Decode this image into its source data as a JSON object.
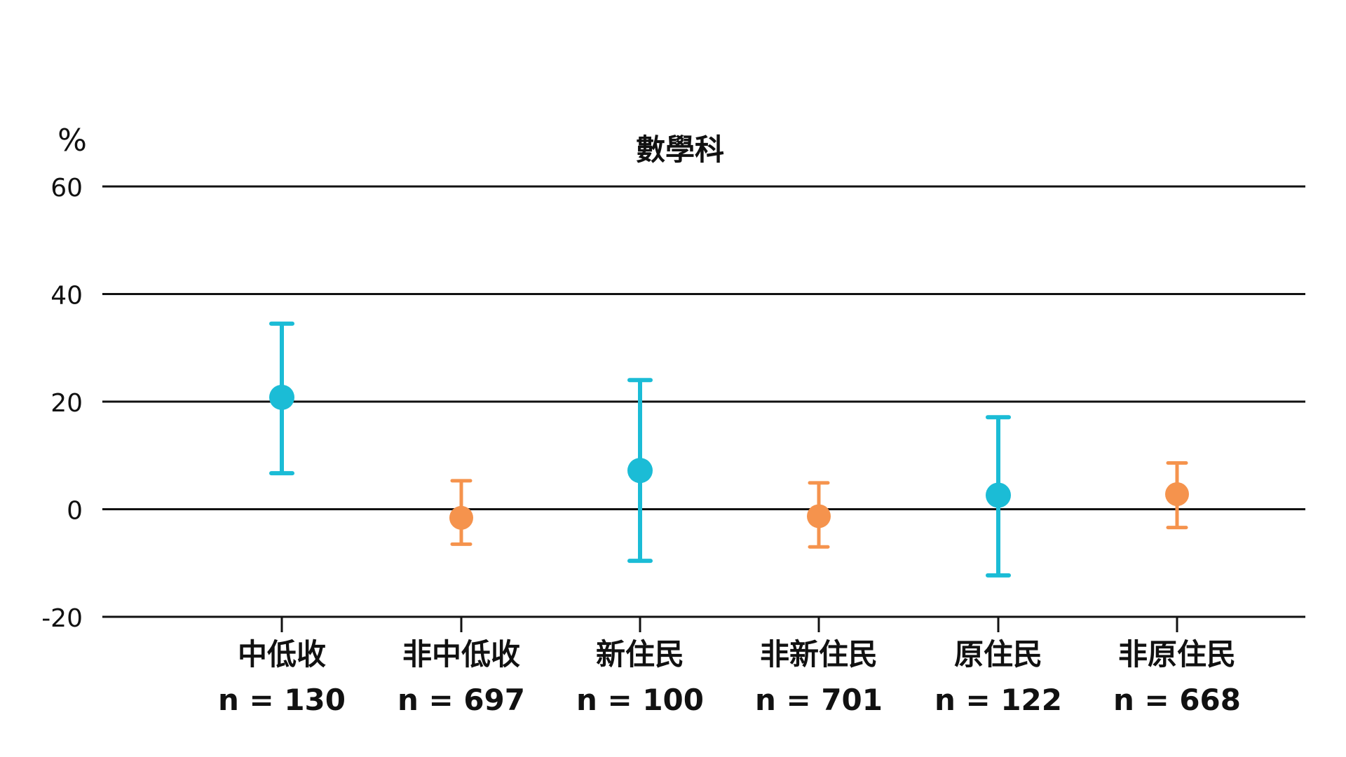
{
  "chart_data": {
    "type": "scatter",
    "title": "數學科",
    "ylabel": "%",
    "ylim": [
      -20,
      60
    ],
    "yticks": [
      "60",
      "40",
      "20",
      "0",
      "-20"
    ],
    "grid": true,
    "categories": [
      "中低收",
      "非中低收",
      "新住民",
      "非新住民",
      "原住民",
      "非原住民"
    ],
    "sample_sizes": [
      "n = 130",
      "n = 697",
      "n = 100",
      "n = 701",
      "n = 122",
      "n = 668"
    ],
    "points": [
      {
        "category": "中低收",
        "value": 20.8,
        "low": 6.7,
        "high": 34.5,
        "group": "target"
      },
      {
        "category": "非中低收",
        "value": -1.6,
        "low": -6.5,
        "high": 5.3,
        "group": "comparison"
      },
      {
        "category": "新住民",
        "value": 7.2,
        "low": -9.6,
        "high": 24.0,
        "group": "target"
      },
      {
        "category": "非新住民",
        "value": -1.3,
        "low": -7.0,
        "high": 4.9,
        "group": "comparison"
      },
      {
        "category": "原住民",
        "value": 2.6,
        "low": -12.3,
        "high": 17.1,
        "group": "target"
      },
      {
        "category": "非原住民",
        "value": 2.8,
        "low": -3.4,
        "high": 8.6,
        "group": "comparison"
      }
    ],
    "colors": {
      "target": "#1bbcd6",
      "comparison": "#f5934d",
      "grid": "#111111"
    }
  }
}
